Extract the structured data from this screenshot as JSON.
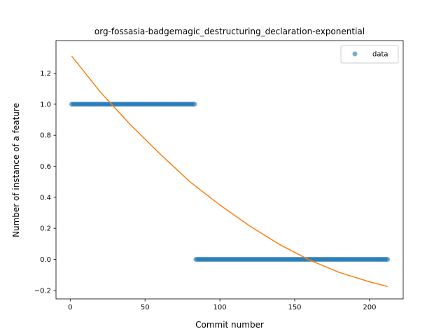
{
  "chart_data": {
    "type": "scatter",
    "title": "org-fossasia-badgemagic_destructuring_declaration-exponential",
    "xlabel": "Commit number",
    "ylabel": "Number of instance of a feature",
    "xlim": [
      -9.5,
      222.5
    ],
    "ylim": [
      -0.255,
      1.41
    ],
    "xticks": [
      0,
      50,
      100,
      150,
      200
    ],
    "yticks": [
      -0.2,
      0.0,
      0.2,
      0.4,
      0.6,
      0.8,
      1.0,
      1.2
    ],
    "xtick_labels": [
      "0",
      "50",
      "100",
      "150",
      "200"
    ],
    "ytick_labels": [
      "−0.2",
      "0.0",
      "0.2",
      "0.4",
      "0.6",
      "0.8",
      "1.0",
      "1.2"
    ],
    "grid": false,
    "legend_position": "top-right",
    "series": [
      {
        "name": "data",
        "kind": "scatter",
        "color": "#1f77b4",
        "segments": [
          {
            "x_start": 1,
            "x_end": 83,
            "y": 1
          },
          {
            "x_start": 84,
            "x_end": 212,
            "y": 0
          }
        ]
      },
      {
        "kind": "line",
        "color": "#ff7f0e",
        "x": [
          1,
          20,
          40,
          60,
          80,
          100,
          120,
          140,
          160,
          180,
          200,
          212
        ],
        "y": [
          1.31,
          1.08,
          0.87,
          0.68,
          0.5,
          0.35,
          0.215,
          0.095,
          -0.005,
          -0.085,
          -0.145,
          -0.175
        ]
      }
    ]
  }
}
